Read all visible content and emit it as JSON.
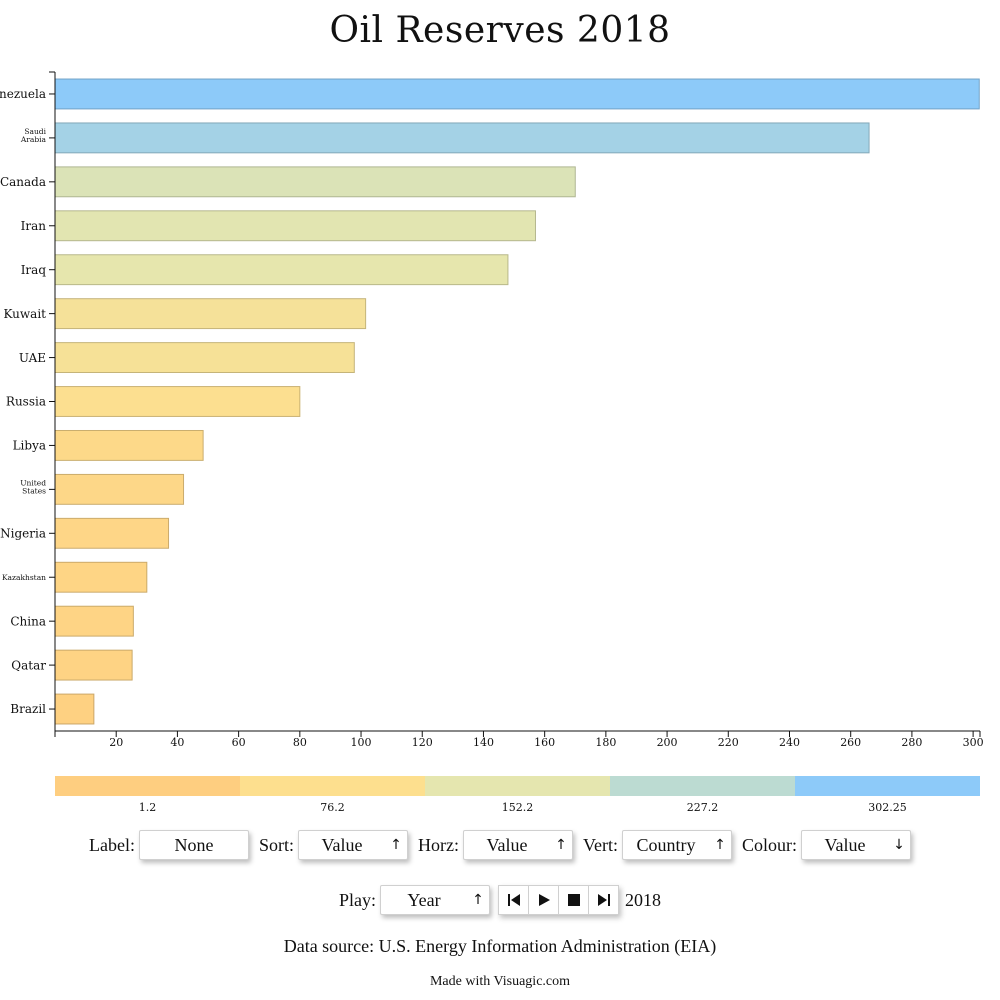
{
  "chart_data": {
    "type": "bar",
    "orientation": "horizontal",
    "title": "Oil Reserves 2018",
    "categories": [
      "Venezuela",
      "Saudi Arabia",
      "Canada",
      "Iran",
      "Iraq",
      "Kuwait",
      "UAE",
      "Russia",
      "Libya",
      "United States",
      "Nigeria",
      "Kazakhstan",
      "China",
      "Qatar",
      "Brazil"
    ],
    "values": [
      302,
      266,
      170,
      157,
      148,
      101.5,
      97.8,
      80,
      48.4,
      42,
      37.1,
      30,
      25.6,
      25.2,
      12.7
    ],
    "xlim": [
      0,
      302.25
    ],
    "xticks": [
      20,
      40,
      60,
      80,
      100,
      120,
      140,
      160,
      180,
      200,
      220,
      240,
      260,
      280,
      300
    ],
    "grid": false,
    "colour_scale": {
      "stops": [
        "#FECE80",
        "#FDDF8E",
        "#E5E6AF",
        "#BCDBD2",
        "#8DCAF9"
      ],
      "labels": [
        "1.2",
        "76.2",
        "152.2",
        "227.2",
        "302.25"
      ],
      "domain": [
        1.2,
        302.25
      ]
    }
  },
  "controls": {
    "label": {
      "caption": "Label:",
      "value": "None"
    },
    "sort": {
      "caption": "Sort:",
      "value": "Value",
      "icon": "arrow-up-icon"
    },
    "horz": {
      "caption": "Horz:",
      "value": "Value",
      "icon": "arrow-up-icon"
    },
    "vert": {
      "caption": "Vert:",
      "value": "Country",
      "icon": "arrow-up-icon"
    },
    "colour": {
      "caption": "Colour:",
      "value": "Value",
      "icon": "arrow-down-icon"
    },
    "play": {
      "caption": "Play:",
      "value": "Year",
      "icon": "arrow-up-icon",
      "year": "2018"
    }
  },
  "footer": {
    "source": "Data source: U.S. Energy Information Administration (EIA)",
    "made_with": "Made with Visuagic.com"
  }
}
